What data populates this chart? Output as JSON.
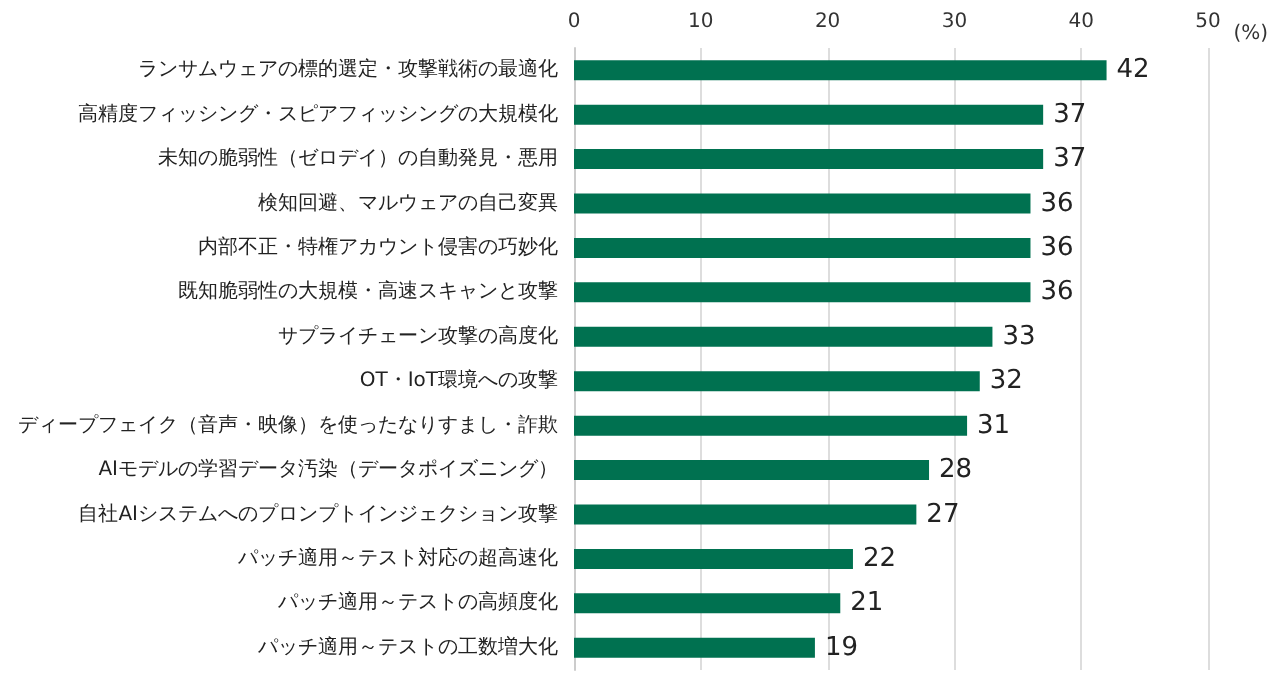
{
  "chart_data": {
    "type": "bar",
    "orientation": "horizontal",
    "xlabel": "(%)",
    "categories": [
      "ランサムウェアの標的選定・攻撃戦術の最適化",
      "高精度フィッシング・スピアフィッシングの大規模化",
      "未知の脆弱性（ゼロデイ）の自動発見・悪用",
      "検知回避、マルウェアの自己変異",
      "内部不正・特権アカウント侵害の巧妙化",
      "既知脆弱性の大規模・高速スキャンと攻撃",
      "サプライチェーン攻撃の高度化",
      "OT・IoT環境への攻撃",
      "ディープフェイク（音声・映像）を使ったなりすまし・詐欺",
      "AIモデルの学習データ汚染（データポイズニング）",
      "自社AIシステムへのプロンプトインジェクション攻撃",
      "パッチ適用～テスト対応の超高速化",
      "パッチ適用～テストの高頻度化",
      "パッチ適用～テストの工数増大化"
    ],
    "values": [
      42,
      37,
      37,
      36,
      36,
      36,
      33,
      32,
      31,
      28,
      27,
      22,
      21,
      19
    ],
    "color": "#007150",
    "xlim": [
      0,
      50
    ],
    "xticks": [
      0,
      10,
      20,
      30,
      40,
      50
    ],
    "grid": "x",
    "data_labels": true
  }
}
